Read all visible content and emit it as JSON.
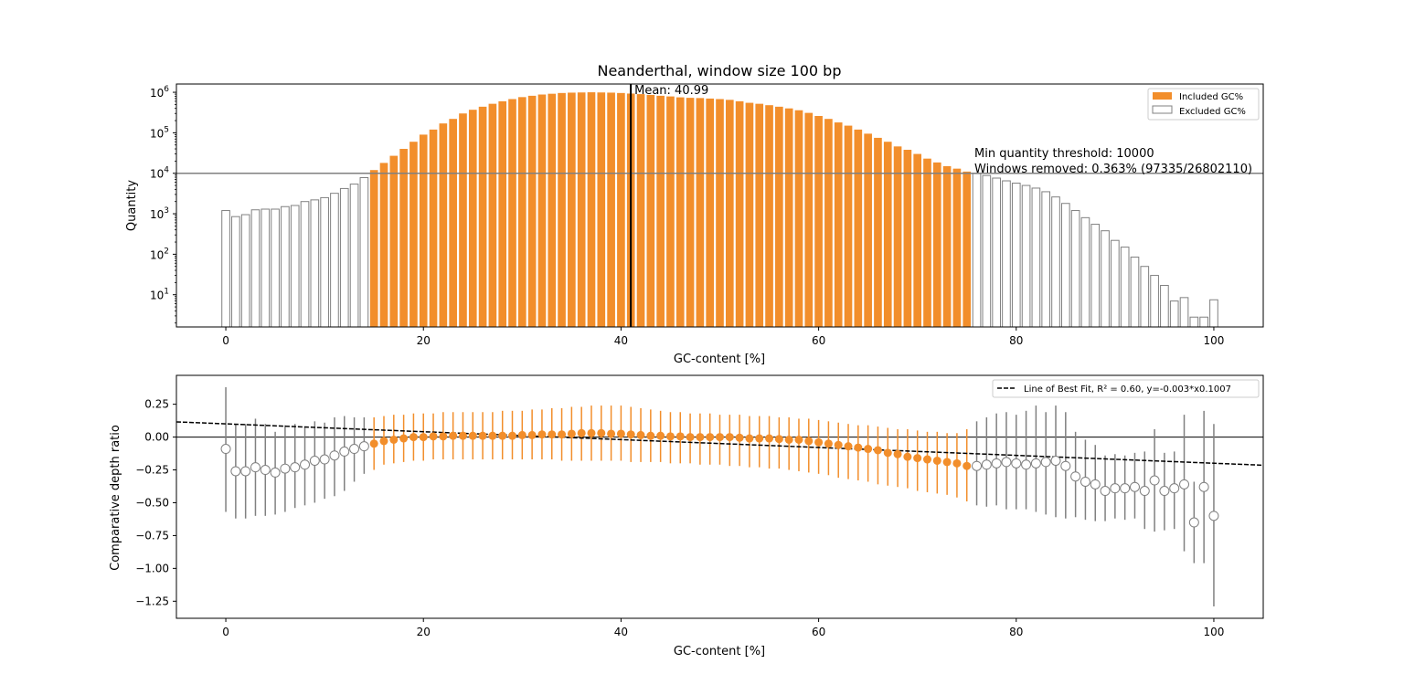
{
  "figure": {
    "title": "Neanderthal, window size 100 bp"
  },
  "colors": {
    "included": "#f28e2b",
    "excluded_edge": "#808080",
    "excluded_fill": "#ffffff",
    "threshold_line": "#808080",
    "mean_line": "#000000",
    "fit_line": "#000000",
    "errorbar_excluded": "#808080"
  },
  "chart_data": [
    {
      "type": "bar",
      "title": "Neanderthal, window size 100 bp",
      "xlabel": "GC-content [%]",
      "ylabel": "Quantity",
      "yscale": "log",
      "xlim": [
        -5,
        105
      ],
      "ylim": [
        1.6,
        1600000
      ],
      "x_ticks": [
        0,
        20,
        40,
        60,
        80,
        100
      ],
      "y_ticks": [
        {
          "value": 10,
          "label": "10",
          "exp": "1"
        },
        {
          "value": 100,
          "label": "10",
          "exp": "2"
        },
        {
          "value": 1000,
          "label": "10",
          "exp": "3"
        },
        {
          "value": 10000,
          "label": "10",
          "exp": "4"
        },
        {
          "value": 100000,
          "label": "10",
          "exp": "5"
        },
        {
          "value": 1000000,
          "label": "10",
          "exp": "6"
        }
      ],
      "legend": {
        "placement": "upper right",
        "entries": [
          {
            "label": "Included GC%",
            "style": "included"
          },
          {
            "label": "Excluded GC%",
            "style": "excluded"
          }
        ]
      },
      "annotations": {
        "mean_label": "Mean: 40.99",
        "mean_value": 40.99,
        "threshold_value": 10000,
        "threshold_label": "Min quantity threshold: 10000",
        "removed_label": "Windows removed: 0.363% (97335/26802110)"
      },
      "included_range": [
        15,
        75
      ],
      "x": [
        0,
        1,
        2,
        3,
        4,
        5,
        6,
        7,
        8,
        9,
        10,
        11,
        12,
        13,
        14,
        15,
        16,
        17,
        18,
        19,
        20,
        21,
        22,
        23,
        24,
        25,
        26,
        27,
        28,
        29,
        30,
        31,
        32,
        33,
        34,
        35,
        36,
        37,
        38,
        39,
        40,
        41,
        42,
        43,
        44,
        45,
        46,
        47,
        48,
        49,
        50,
        51,
        52,
        53,
        54,
        55,
        56,
        57,
        58,
        59,
        60,
        61,
        62,
        63,
        64,
        65,
        66,
        67,
        68,
        69,
        70,
        71,
        72,
        73,
        74,
        75,
        76,
        77,
        78,
        79,
        80,
        81,
        82,
        83,
        84,
        85,
        86,
        87,
        88,
        89,
        90,
        91,
        92,
        93,
        94,
        95,
        96,
        97,
        98,
        99,
        100
      ],
      "values": [
        1200,
        850,
        950,
        1250,
        1300,
        1300,
        1500,
        1600,
        2000,
        2200,
        2500,
        3200,
        4200,
        5400,
        7800,
        12000,
        18000,
        27000,
        40000,
        60000,
        90000,
        120000,
        170000,
        220000,
        300000,
        370000,
        440000,
        520000,
        600000,
        680000,
        760000,
        820000,
        880000,
        920000,
        960000,
        980000,
        990000,
        1000000,
        990000,
        980000,
        960000,
        930000,
        900000,
        860000,
        820000,
        790000,
        750000,
        730000,
        720000,
        700000,
        680000,
        650000,
        600000,
        550000,
        520000,
        480000,
        440000,
        400000,
        360000,
        310000,
        260000,
        220000,
        180000,
        150000,
        120000,
        95000,
        75000,
        60000,
        46000,
        38000,
        30000,
        23000,
        18500,
        15000,
        13000,
        11000,
        9800,
        8800,
        7600,
        6500,
        5700,
        5000,
        4300,
        3500,
        2600,
        1800,
        1200,
        800,
        550,
        380,
        220,
        150,
        85,
        50,
        30,
        17,
        7,
        8.5,
        2.8,
        2.8,
        7.5
      ]
    },
    {
      "type": "scatter",
      "xlabel": "GC-content [%]",
      "ylabel": "Comparative depth ratio",
      "xlim": [
        -5,
        105
      ],
      "ylim": [
        -1.38,
        0.47
      ],
      "x_ticks": [
        0,
        20,
        40,
        60,
        80,
        100
      ],
      "y_ticks": [
        {
          "value": 0.25,
          "label": "0.25"
        },
        {
          "value": 0.0,
          "label": "0.00"
        },
        {
          "value": -0.25,
          "label": "−0.25"
        },
        {
          "value": -0.5,
          "label": "−0.50"
        },
        {
          "value": -0.75,
          "label": "−0.75"
        },
        {
          "value": -1.0,
          "label": "−1.00"
        },
        {
          "value": -1.25,
          "label": "−1.25"
        }
      ],
      "legend": {
        "placement": "upper right",
        "entries": [
          {
            "label": "Line of Best Fit, R² = 0.60, y=-0.003*x0.1007",
            "style": "dashed"
          }
        ]
      },
      "fit": {
        "slope": -0.003,
        "intercept": 0.1007
      },
      "zero_line": 0,
      "included_range": [
        15,
        75
      ],
      "x": [
        0,
        1,
        2,
        3,
        4,
        5,
        6,
        7,
        8,
        9,
        10,
        11,
        12,
        13,
        14,
        15,
        16,
        17,
        18,
        19,
        20,
        21,
        22,
        23,
        24,
        25,
        26,
        27,
        28,
        29,
        30,
        31,
        32,
        33,
        34,
        35,
        36,
        37,
        38,
        39,
        40,
        41,
        42,
        43,
        44,
        45,
        46,
        47,
        48,
        49,
        50,
        51,
        52,
        53,
        54,
        55,
        56,
        57,
        58,
        59,
        60,
        61,
        62,
        63,
        64,
        65,
        66,
        67,
        68,
        69,
        70,
        71,
        72,
        73,
        74,
        75,
        76,
        77,
        78,
        79,
        80,
        81,
        82,
        83,
        84,
        85,
        86,
        87,
        88,
        89,
        90,
        91,
        92,
        93,
        94,
        95,
        96,
        97,
        98,
        99,
        100
      ],
      "y": [
        -0.09,
        -0.26,
        -0.26,
        -0.23,
        -0.25,
        -0.27,
        -0.24,
        -0.23,
        -0.21,
        -0.18,
        -0.17,
        -0.14,
        -0.11,
        -0.09,
        -0.07,
        -0.05,
        -0.03,
        -0.02,
        -0.01,
        0.0,
        0.0,
        0.005,
        0.005,
        0.01,
        0.01,
        0.01,
        0.01,
        0.01,
        0.01,
        0.01,
        0.015,
        0.015,
        0.02,
        0.02,
        0.02,
        0.025,
        0.03,
        0.03,
        0.03,
        0.025,
        0.025,
        0.02,
        0.015,
        0.01,
        0.01,
        0.005,
        0.005,
        0.0,
        0.0,
        0.0,
        0.0,
        0.0,
        -0.005,
        -0.01,
        -0.01,
        -0.01,
        -0.015,
        -0.02,
        -0.02,
        -0.03,
        -0.04,
        -0.05,
        -0.06,
        -0.07,
        -0.08,
        -0.09,
        -0.1,
        -0.12,
        -0.13,
        -0.15,
        -0.16,
        -0.17,
        -0.18,
        -0.19,
        -0.2,
        -0.22,
        -0.22,
        -0.21,
        -0.2,
        -0.19,
        -0.2,
        -0.21,
        -0.2,
        -0.19,
        -0.18,
        -0.22,
        -0.3,
        -0.34,
        -0.36,
        -0.41,
        -0.39,
        -0.39,
        -0.38,
        -0.41,
        -0.33,
        -0.41,
        -0.39,
        -0.36,
        -0.65,
        -0.38,
        -0.6
      ],
      "err_low": [
        -0.57,
        -0.62,
        -0.62,
        -0.6,
        -0.6,
        -0.59,
        -0.57,
        -0.54,
        -0.52,
        -0.5,
        -0.47,
        -0.45,
        -0.41,
        -0.34,
        -0.28,
        -0.25,
        -0.21,
        -0.2,
        -0.19,
        -0.18,
        -0.18,
        -0.17,
        -0.17,
        -0.17,
        -0.17,
        -0.17,
        -0.17,
        -0.17,
        -0.17,
        -0.17,
        -0.17,
        -0.17,
        -0.17,
        -0.17,
        -0.18,
        -0.18,
        -0.18,
        -0.18,
        -0.18,
        -0.18,
        -0.18,
        -0.19,
        -0.19,
        -0.19,
        -0.19,
        -0.2,
        -0.2,
        -0.2,
        -0.21,
        -0.21,
        -0.21,
        -0.22,
        -0.22,
        -0.23,
        -0.23,
        -0.24,
        -0.24,
        -0.25,
        -0.26,
        -0.27,
        -0.28,
        -0.29,
        -0.31,
        -0.32,
        -0.33,
        -0.34,
        -0.36,
        -0.37,
        -0.38,
        -0.39,
        -0.41,
        -0.42,
        -0.43,
        -0.44,
        -0.46,
        -0.49,
        -0.52,
        -0.53,
        -0.52,
        -0.55,
        -0.55,
        -0.55,
        -0.57,
        -0.59,
        -0.61,
        -0.62,
        -0.61,
        -0.63,
        -0.64,
        -0.64,
        -0.62,
        -0.63,
        -0.62,
        -0.7,
        -0.72,
        -0.71,
        -0.7,
        -0.87,
        -0.96,
        -0.96,
        -1.29
      ],
      "err_high": [
        0.38,
        0.1,
        0.1,
        0.14,
        0.1,
        0.04,
        0.09,
        0.1,
        0.08,
        0.12,
        0.11,
        0.15,
        0.16,
        0.15,
        0.15,
        0.15,
        0.16,
        0.17,
        0.17,
        0.18,
        0.18,
        0.18,
        0.19,
        0.19,
        0.19,
        0.19,
        0.19,
        0.19,
        0.2,
        0.2,
        0.2,
        0.21,
        0.21,
        0.22,
        0.22,
        0.23,
        0.23,
        0.24,
        0.24,
        0.24,
        0.24,
        0.23,
        0.22,
        0.21,
        0.2,
        0.19,
        0.19,
        0.18,
        0.18,
        0.18,
        0.17,
        0.17,
        0.17,
        0.16,
        0.16,
        0.16,
        0.15,
        0.15,
        0.14,
        0.14,
        0.13,
        0.12,
        0.11,
        0.1,
        0.09,
        0.09,
        0.08,
        0.07,
        0.06,
        0.06,
        0.05,
        0.04,
        0.04,
        0.03,
        0.03,
        0.06,
        0.12,
        0.15,
        0.18,
        0.19,
        0.17,
        0.2,
        0.24,
        0.19,
        0.24,
        0.19,
        0.04,
        -0.02,
        -0.06,
        -0.14,
        -0.13,
        -0.14,
        -0.12,
        -0.11,
        0.06,
        -0.12,
        -0.11,
        0.17,
        -0.34,
        0.2,
        0.1
      ]
    }
  ]
}
